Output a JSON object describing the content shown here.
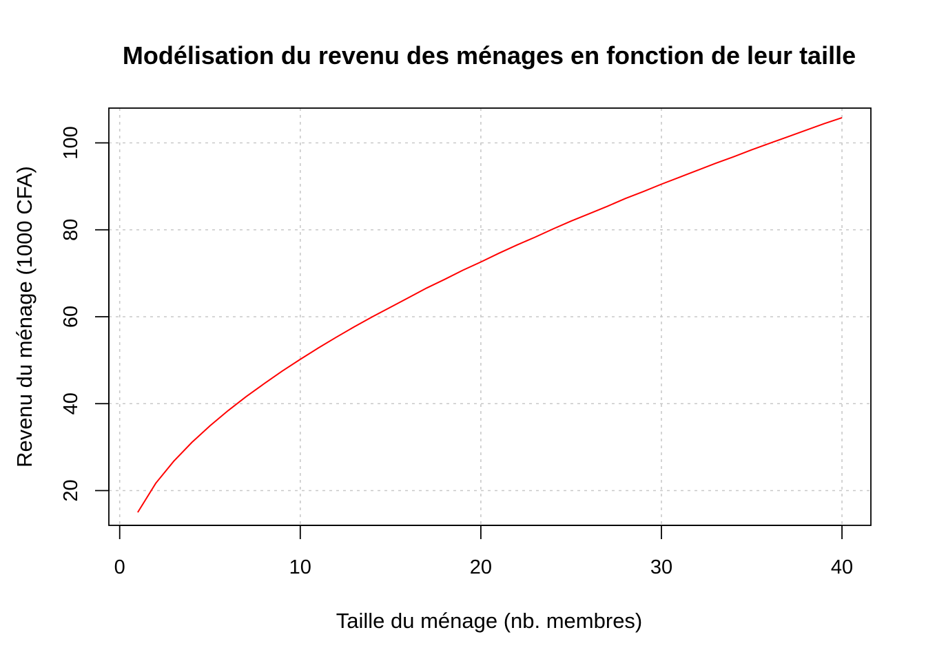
{
  "chart_data": {
    "type": "line",
    "title": "Modélisation du revenu des ménages en fonction de leur taille",
    "xlabel": "Taille du ménage (nb. membres)",
    "ylabel": "Revenu du ménage (1000 CFA)",
    "xlim": [
      -0.6,
      41.6
    ],
    "ylim": [
      12,
      108
    ],
    "x_ticks": [
      0,
      10,
      20,
      30,
      40
    ],
    "y_ticks": [
      20,
      40,
      60,
      80,
      100
    ],
    "grid": true,
    "series": [
      {
        "color": "#ff0000",
        "x": [
          1,
          2,
          3,
          4,
          5,
          6,
          7,
          8,
          9,
          10,
          11,
          12,
          13,
          14,
          15,
          16,
          17,
          18,
          19,
          20,
          21,
          22,
          23,
          24,
          25,
          26,
          27,
          28,
          29,
          30,
          31,
          32,
          33,
          34,
          35,
          36,
          37,
          38,
          39,
          40
        ],
        "y": [
          15.0,
          21.7,
          26.8,
          31.1,
          34.9,
          38.4,
          41.6,
          44.6,
          47.5,
          50.2,
          52.8,
          55.3,
          57.7,
          60.0,
          62.2,
          64.4,
          66.6,
          68.6,
          70.7,
          72.6,
          74.6,
          76.5,
          78.3,
          80.2,
          82.0,
          83.7,
          85.4,
          87.2,
          88.8,
          90.5,
          92.1,
          93.7,
          95.3,
          96.8,
          98.4,
          99.9,
          101.4,
          102.9,
          104.4,
          105.8
        ]
      }
    ]
  }
}
